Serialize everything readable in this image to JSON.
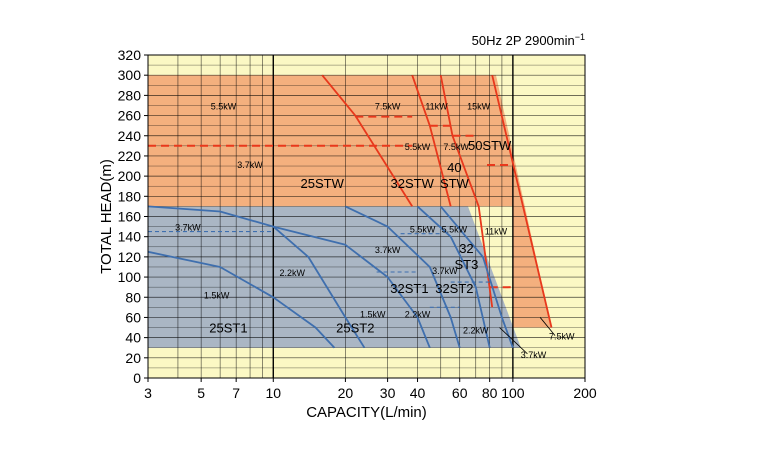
{
  "conditions": "50Hz 2P 2900min",
  "conditions_sup": "−1",
  "colors": {
    "background": "#fbf8c4",
    "stw_region": "#f4b07e",
    "st_region": "#aab6c4",
    "stw_curve": "#e8381c",
    "st_curve": "#3f6fae",
    "grid": "#000000"
  },
  "chart_data": {
    "type": "line",
    "xlabel": "CAPACITY(L/min)",
    "ylabel": "TOTAL HEAD(m)",
    "x_scale": "log",
    "xlim": [
      3,
      200
    ],
    "ylim": [
      0,
      320
    ],
    "grid": true,
    "x_ticks": [
      3,
      5,
      7,
      10,
      20,
      30,
      40,
      60,
      80,
      100,
      200
    ],
    "x_tick_labels": [
      "3",
      "5",
      "7",
      "10",
      "20",
      "30",
      "40",
      "60",
      "80",
      "100",
      "200"
    ],
    "y_ticks": [
      0,
      20,
      40,
      60,
      80,
      100,
      120,
      140,
      160,
      180,
      200,
      220,
      240,
      260,
      280,
      300,
      320
    ],
    "y_tick_labels": [
      "0",
      "20",
      "40",
      "60",
      "80",
      "100",
      "120",
      "140",
      "160",
      "180",
      "200",
      "220",
      "240",
      "260",
      "280",
      "300",
      "320"
    ],
    "regions": [
      {
        "name": "STW",
        "color": "#f4b07e",
        "points": [
          [
            3,
            300
          ],
          [
            85,
            300
          ],
          [
            145,
            50
          ],
          [
            100,
            50
          ],
          [
            100,
            170
          ],
          [
            3,
            170
          ]
        ]
      },
      {
        "name": "ST",
        "color": "#aab6c4",
        "points": [
          [
            3,
            170
          ],
          [
            65,
            170
          ],
          [
            108,
            30
          ],
          [
            3,
            30
          ]
        ]
      }
    ],
    "series": [
      {
        "group": "STW",
        "style": "solid",
        "points": [
          [
            16,
            300
          ],
          [
            22,
            260
          ],
          [
            38,
            170
          ]
        ]
      },
      {
        "group": "STW",
        "style": "solid",
        "points": [
          [
            38,
            300
          ],
          [
            45,
            250
          ],
          [
            55,
            170
          ]
        ]
      },
      {
        "group": "STW",
        "style": "solid",
        "points": [
          [
            50,
            300
          ],
          [
            56,
            240
          ],
          [
            72,
            170
          ],
          [
            82,
            70
          ]
        ]
      },
      {
        "group": "STW",
        "style": "solid",
        "points": [
          [
            82,
            300
          ],
          [
            145,
            50
          ]
        ]
      },
      {
        "group": "STW",
        "style": "dashed",
        "points": [
          [
            3,
            230
          ],
          [
            38,
            230
          ]
        ]
      },
      {
        "group": "STW",
        "style": "dashed",
        "points": [
          [
            22,
            259
          ],
          [
            38,
            259
          ]
        ]
      },
      {
        "group": "STW",
        "style": "dashed",
        "points": [
          [
            45,
            250
          ],
          [
            55,
            250
          ]
        ]
      },
      {
        "group": "STW",
        "style": "dashed",
        "points": [
          [
            56,
            240
          ],
          [
            72,
            240
          ]
        ]
      },
      {
        "group": "STW",
        "style": "dashed",
        "points": [
          [
            78,
            211
          ],
          [
            100,
            211
          ]
        ]
      },
      {
        "group": "STW",
        "style": "dashed",
        "points": [
          [
            80,
            90
          ],
          [
            100,
            90
          ]
        ]
      },
      {
        "group": "ST",
        "style": "solid",
        "points": [
          [
            3,
            170
          ],
          [
            6,
            165
          ],
          [
            10,
            150
          ],
          [
            14,
            120
          ],
          [
            20,
            60
          ],
          [
            24,
            30
          ]
        ]
      },
      {
        "group": "ST",
        "style": "solid",
        "points": [
          [
            3,
            125
          ],
          [
            6,
            110
          ],
          [
            10,
            80
          ],
          [
            15,
            50
          ],
          [
            18,
            30
          ]
        ]
      },
      {
        "group": "ST",
        "style": "solid",
        "points": [
          [
            10,
            150
          ],
          [
            20,
            132
          ],
          [
            30,
            100
          ],
          [
            40,
            60
          ],
          [
            45,
            30
          ]
        ]
      },
      {
        "group": "ST",
        "style": "solid",
        "points": [
          [
            20,
            170
          ],
          [
            30,
            150
          ],
          [
            45,
            110
          ],
          [
            55,
            60
          ],
          [
            60,
            30
          ]
        ]
      },
      {
        "group": "ST",
        "style": "solid",
        "points": [
          [
            40,
            170
          ],
          [
            55,
            140
          ],
          [
            70,
            90
          ],
          [
            80,
            30
          ]
        ]
      },
      {
        "group": "ST",
        "style": "solid",
        "points": [
          [
            50,
            170
          ],
          [
            75,
            120
          ],
          [
            90,
            60
          ],
          [
            100,
            30
          ]
        ]
      },
      {
        "group": "ST",
        "style": "dashed",
        "points": [
          [
            3,
            145
          ],
          [
            10,
            145
          ]
        ]
      },
      {
        "group": "ST",
        "style": "dashed",
        "points": [
          [
            34,
            143
          ],
          [
            50,
            143
          ]
        ]
      },
      {
        "group": "ST",
        "style": "dashed",
        "points": [
          [
            27,
            105
          ],
          [
            40,
            105
          ]
        ]
      },
      {
        "group": "ST",
        "style": "dashed",
        "points": [
          [
            55,
            95
          ],
          [
            80,
            95
          ]
        ]
      },
      {
        "group": "ST",
        "style": "dashed",
        "points": [
          [
            45,
            70
          ],
          [
            60,
            70
          ]
        ]
      }
    ],
    "model_labels": [
      {
        "text": "25STW",
        "x": 16,
        "y": 188
      },
      {
        "text": "32STW",
        "x": 38,
        "y": 188
      },
      {
        "text": "40",
        "x": 57,
        "y": 204
      },
      {
        "text": "STW",
        "x": 57,
        "y": 188
      },
      {
        "text": "50STW",
        "x": 80,
        "y": 226
      },
      {
        "text": "25ST1",
        "x": 6.5,
        "y": 45
      },
      {
        "text": "25ST2",
        "x": 22,
        "y": 45
      },
      {
        "text": "32ST1",
        "x": 37,
        "y": 84
      },
      {
        "text": "32ST2",
        "x": 57,
        "y": 84
      },
      {
        "text": "32",
        "x": 64,
        "y": 124
      },
      {
        "text": "ST3",
        "x": 64,
        "y": 108
      }
    ],
    "annotations": [
      {
        "text": "5.5kW",
        "x": 6.2,
        "y": 266
      },
      {
        "text": "3.7kW",
        "x": 8.0,
        "y": 208
      },
      {
        "text": "7.5kW",
        "x": 30,
        "y": 266
      },
      {
        "text": "11kW",
        "x": 48,
        "y": 266
      },
      {
        "text": "15kW",
        "x": 72,
        "y": 266
      },
      {
        "text": "5.5kW",
        "x": 40,
        "y": 226
      },
      {
        "text": "7.5kW",
        "x": 58,
        "y": 226
      },
      {
        "text": "3.7kW",
        "x": 4.4,
        "y": 146
      },
      {
        "text": "3.7kW",
        "x": 30,
        "y": 124
      },
      {
        "text": "5.5kW",
        "x": 42,
        "y": 144
      },
      {
        "text": "5.5kW",
        "x": 57,
        "y": 144
      },
      {
        "text": "11kW",
        "x": 85,
        "y": 142
      },
      {
        "text": "2.2kW",
        "x": 12,
        "y": 101
      },
      {
        "text": "3.7kW",
        "x": 52,
        "y": 103
      },
      {
        "text": "1.5kW",
        "x": 5.8,
        "y": 79
      },
      {
        "text": "1.5kW",
        "x": 26,
        "y": 60
      },
      {
        "text": "2.2kW",
        "x": 40,
        "y": 60
      },
      {
        "text": "2.2kW",
        "x": 70,
        "y": 44
      },
      {
        "text": "7.5kW",
        "x": 160,
        "y": 38
      },
      {
        "text": "3.7kW",
        "x": 122,
        "y": 20
      }
    ],
    "leaders": [
      {
        "from": [
          130,
          60
        ],
        "to": [
          150,
          42
        ]
      },
      {
        "from": [
          88,
          50
        ],
        "to": [
          115,
          24
        ]
      }
    ]
  }
}
